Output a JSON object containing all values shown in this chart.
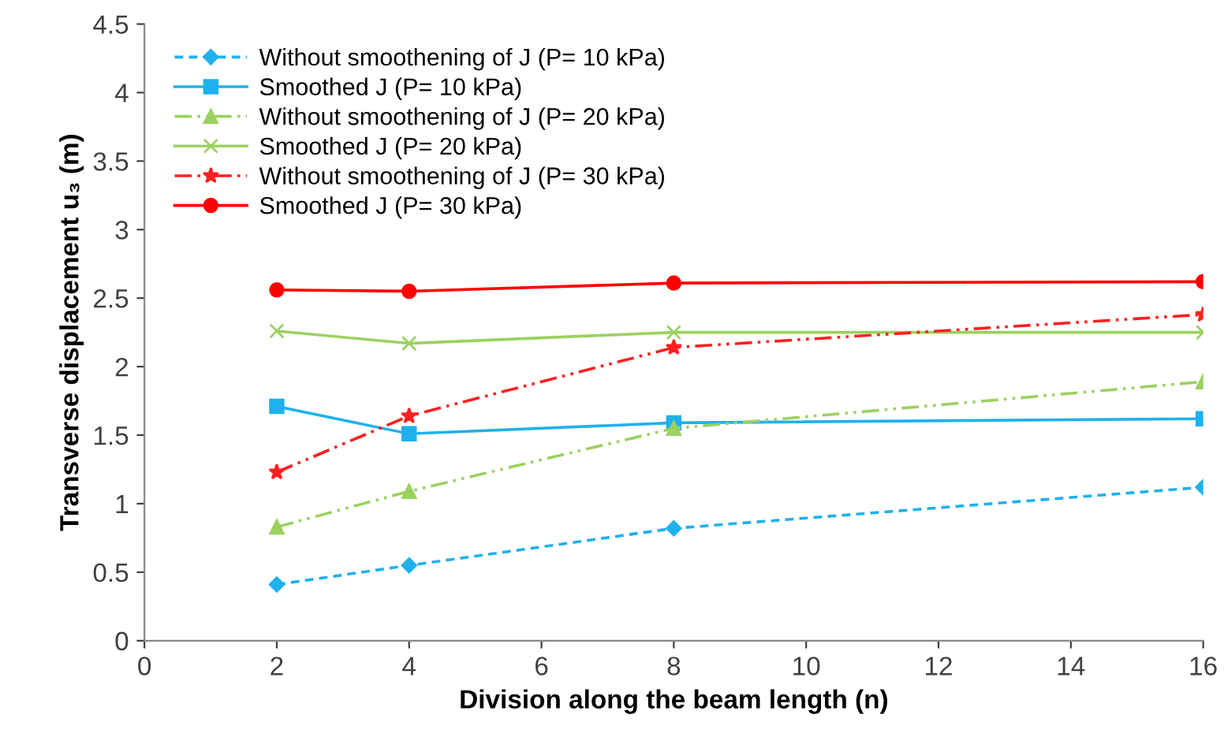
{
  "chart_data": {
    "type": "line",
    "xlabel": "Division along the beam length (n)",
    "ylabel": "Transverse displacement u₃ (m)",
    "x": [
      2,
      4,
      8,
      16
    ],
    "xlim": [
      0,
      16
    ],
    "xticks": [
      0,
      2,
      4,
      6,
      8,
      10,
      12,
      14,
      16
    ],
    "ylim": [
      0,
      4.5
    ],
    "yticks": [
      0,
      0.5,
      1,
      1.5,
      2,
      2.5,
      3,
      3.5,
      4,
      4.5
    ],
    "grid": false,
    "legend": "top left",
    "series": [
      {
        "name": "Without smoothening of J (P= 10 kPa)",
        "color": "#1fb1ec",
        "marker": "diamond",
        "line_style": "dashed",
        "values": [
          0.41,
          0.55,
          0.82,
          1.12
        ]
      },
      {
        "name": "Smoothed J (P= 10 kPa)",
        "color": "#1fb1ec",
        "marker": "square",
        "line_style": "solid",
        "values": [
          1.71,
          1.51,
          1.59,
          1.62
        ]
      },
      {
        "name": "Without smoothening of J (P= 20 kPa)",
        "color": "#9bd160",
        "marker": "triangle",
        "line_style": "dashdotdot",
        "values": [
          0.83,
          1.09,
          1.55,
          1.89
        ]
      },
      {
        "name": "Smoothed J (P= 20 kPa)",
        "color": "#9bd160",
        "marker": "cross",
        "line_style": "solid",
        "values": [
          2.26,
          2.17,
          2.25,
          2.25
        ]
      },
      {
        "name": "Without smoothening of J (P= 30 kPa)",
        "color": "#ff2020",
        "marker": "star",
        "line_style": "dashdotdot",
        "values": [
          1.23,
          1.64,
          2.14,
          2.38
        ]
      },
      {
        "name": "Smoothed J (P= 30 kPa)",
        "color": "#ff0000",
        "marker": "circle",
        "line_style": "solid",
        "values": [
          2.56,
          2.55,
          2.61,
          2.62
        ]
      }
    ]
  }
}
